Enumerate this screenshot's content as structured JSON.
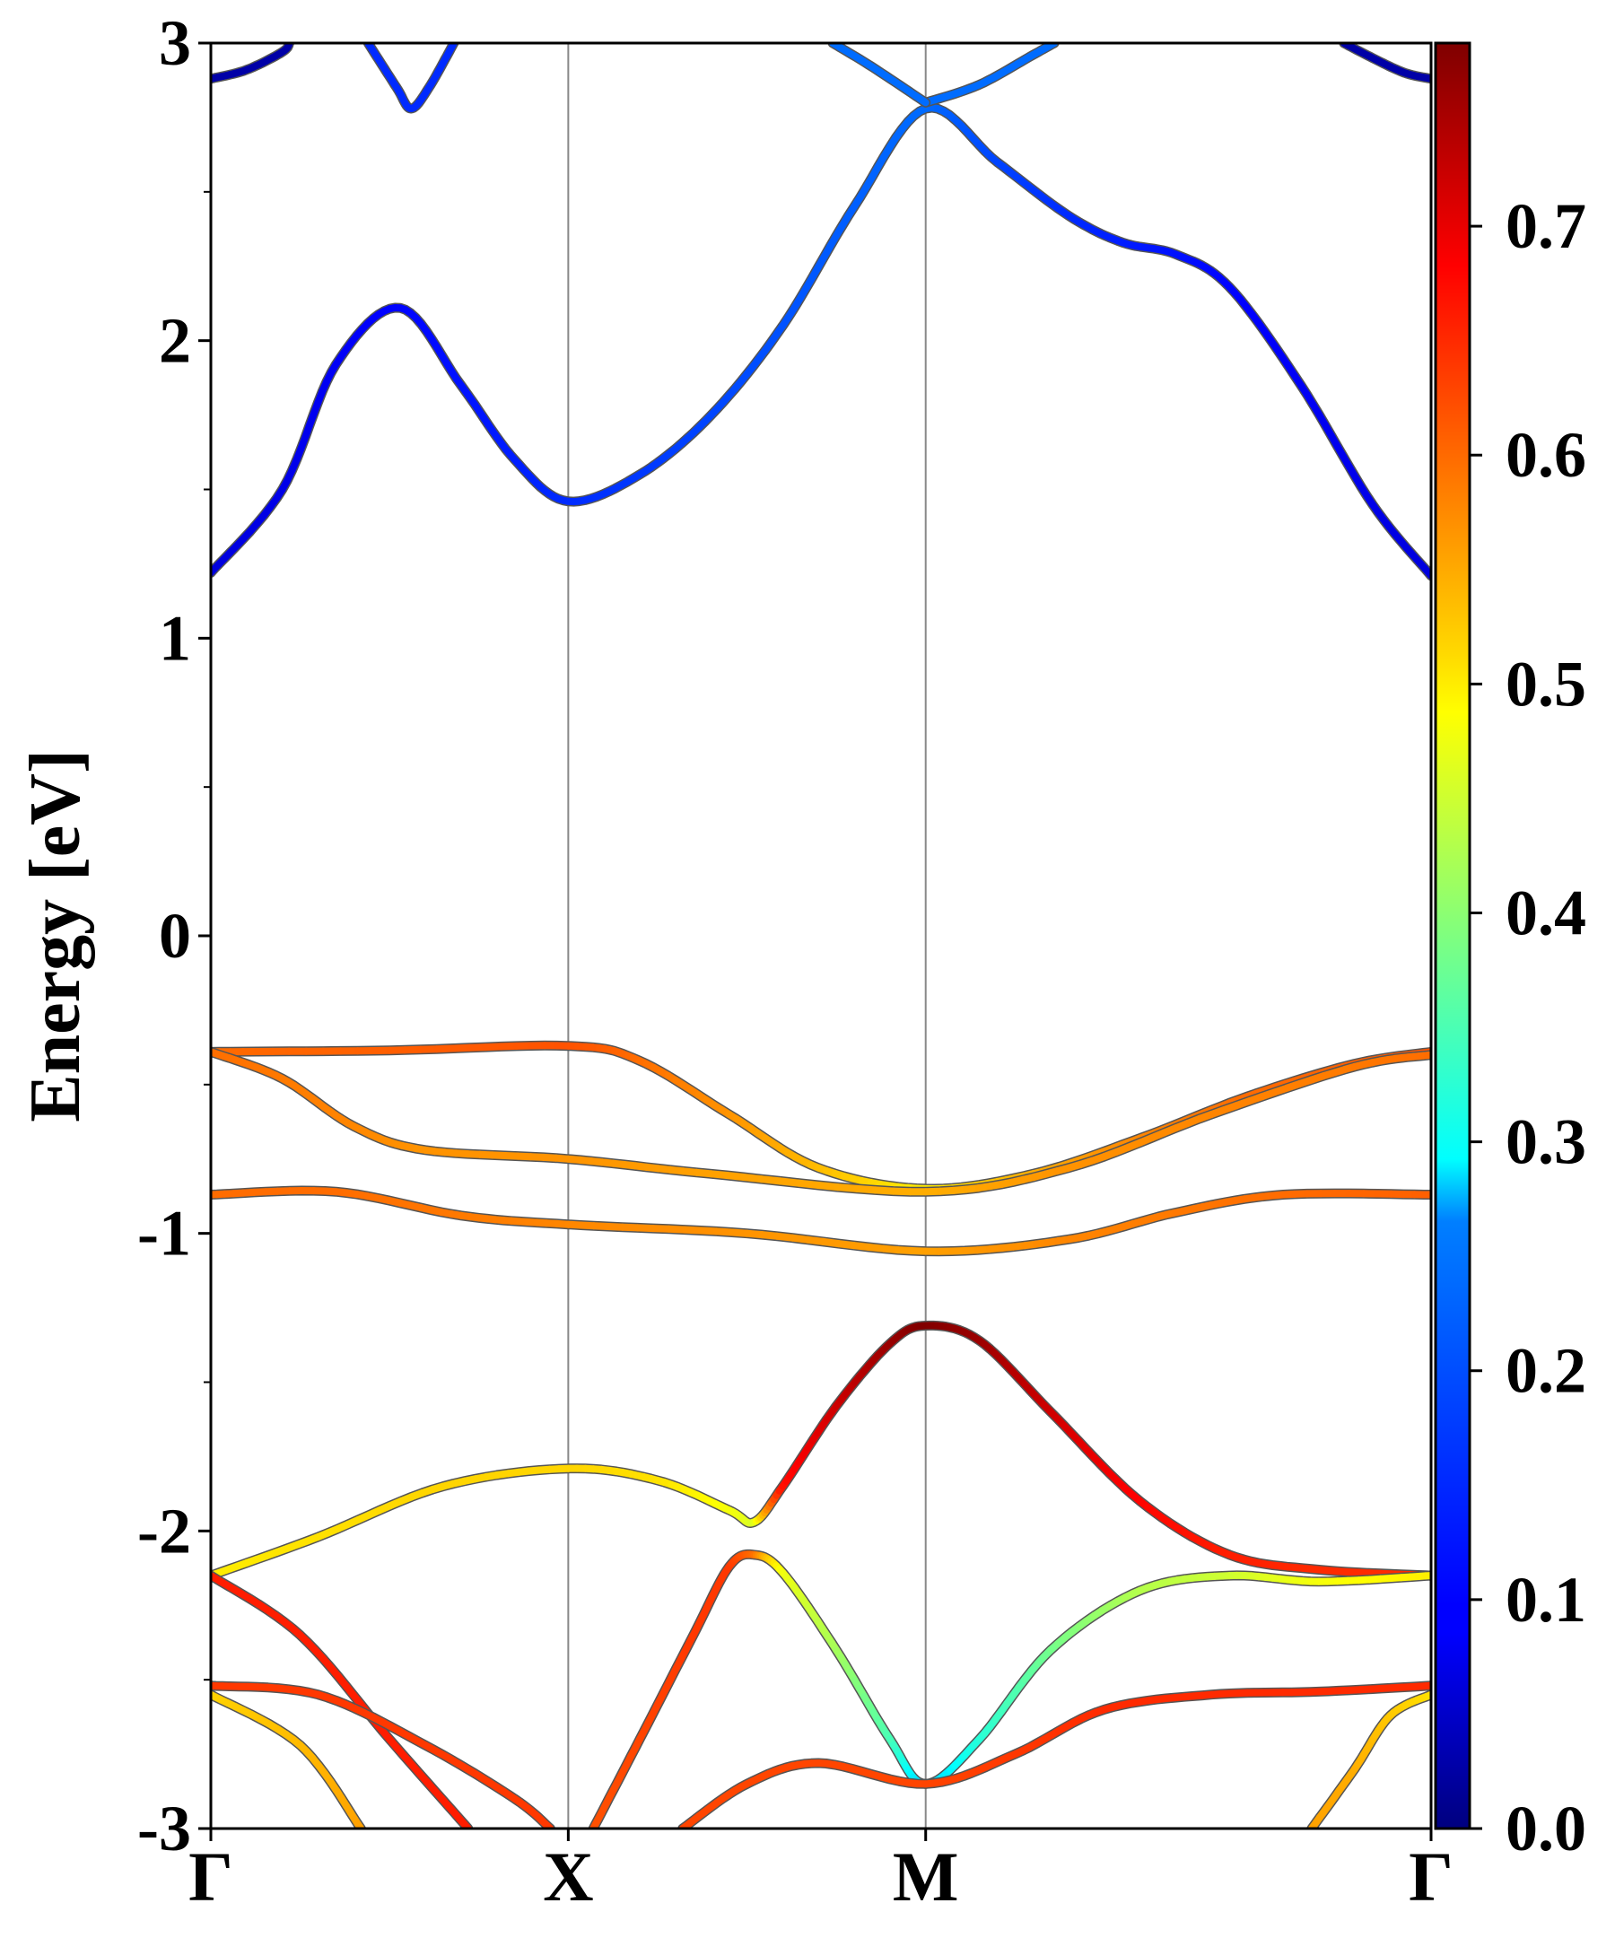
{
  "chart_data": {
    "type": "line",
    "title": "",
    "ylabel": "Energy [eV]",
    "xlabel": "",
    "ylim": [
      -3,
      3
    ],
    "yticks": [
      -3,
      -2,
      -1,
      0,
      1,
      2,
      3
    ],
    "ytick_labels": [
      "-3",
      "-2",
      "-1",
      "0",
      "1",
      "2",
      "3"
    ],
    "grid": false,
    "kpath": {
      "labels": [
        "Γ",
        "X",
        "M",
        "Γ"
      ],
      "positions": [
        0,
        1,
        2,
        3.414
      ]
    },
    "colorbar": {
      "colormap": "jet",
      "range": [
        0.0,
        0.78
      ],
      "ticks": [
        0.0,
        0.1,
        0.2,
        0.3,
        0.4,
        0.5,
        0.6,
        0.7
      ],
      "tick_labels": [
        "0.0",
        "0.1",
        "0.2",
        "0.3",
        "0.4",
        "0.5",
        "0.6",
        "0.7"
      ]
    },
    "series": [
      {
        "points": [
          [
            0,
            1.22,
            0.07
          ],
          [
            0.2,
            1.5,
            0.08
          ],
          [
            0.35,
            1.92,
            0.09
          ],
          [
            0.53,
            2.11,
            0.1
          ],
          [
            0.7,
            1.85,
            0.11
          ],
          [
            0.85,
            1.6,
            0.12
          ],
          [
            1.0,
            1.46,
            0.13
          ],
          [
            1.2,
            1.55,
            0.14
          ],
          [
            1.4,
            1.75,
            0.15
          ],
          [
            1.6,
            2.05,
            0.16
          ],
          [
            1.8,
            2.45,
            0.17
          ],
          [
            2.0,
            2.78,
            0.18
          ],
          [
            2.2,
            2.6,
            0.15
          ],
          [
            2.4,
            2.42,
            0.13
          ],
          [
            2.55,
            2.33,
            0.12
          ],
          [
            2.7,
            2.29,
            0.11
          ],
          [
            2.85,
            2.18,
            0.1
          ],
          [
            3.05,
            1.85,
            0.09
          ],
          [
            3.25,
            1.45,
            0.08
          ],
          [
            3.414,
            1.21,
            0.07
          ]
        ]
      },
      {
        "points": [
          [
            2.0,
            2.8,
            0.18
          ],
          [
            2.15,
            2.86,
            0.18
          ],
          [
            2.3,
            2.96,
            0.18
          ],
          [
            2.36,
            3.0,
            0.18
          ]
        ]
      },
      {
        "points": [
          [
            1.74,
            3.0,
            0.18
          ],
          [
            1.85,
            2.92,
            0.18
          ],
          [
            2.0,
            2.8,
            0.18
          ]
        ]
      },
      {
        "points": [
          [
            0.44,
            3.0,
            0.13
          ],
          [
            0.52,
            2.85,
            0.13
          ],
          [
            0.56,
            2.78,
            0.13
          ],
          [
            0.61,
            2.85,
            0.13
          ],
          [
            0.68,
            3.0,
            0.13
          ]
        ]
      },
      {
        "points": [
          [
            0,
            2.88,
            0.03
          ],
          [
            0.1,
            2.91,
            0.03
          ],
          [
            0.2,
            2.97,
            0.03
          ],
          [
            0.22,
            3.0,
            0.03
          ]
        ]
      },
      {
        "points": [
          [
            3.17,
            3.0,
            0.03
          ],
          [
            3.25,
            2.95,
            0.03
          ],
          [
            3.34,
            2.9,
            0.03
          ],
          [
            3.414,
            2.88,
            0.03
          ]
        ]
      },
      {
        "points": [
          [
            0,
            -0.39,
            0.6
          ],
          [
            0.5,
            -0.385,
            0.61
          ],
          [
            1.0,
            -0.37,
            0.62
          ],
          [
            1.2,
            -0.42,
            0.6
          ],
          [
            1.45,
            -0.6,
            0.57
          ],
          [
            1.7,
            -0.78,
            0.54
          ],
          [
            2.0,
            -0.85,
            0.5
          ],
          [
            2.3,
            -0.8,
            0.55
          ],
          [
            2.6,
            -0.68,
            0.58
          ],
          [
            2.9,
            -0.54,
            0.6
          ],
          [
            3.2,
            -0.43,
            0.61
          ],
          [
            3.414,
            -0.39,
            0.62
          ]
        ]
      },
      {
        "points": [
          [
            0,
            -0.39,
            0.6
          ],
          [
            0.2,
            -0.48,
            0.59
          ],
          [
            0.4,
            -0.64,
            0.58
          ],
          [
            0.6,
            -0.72,
            0.57
          ],
          [
            1.0,
            -0.75,
            0.57
          ],
          [
            1.4,
            -0.8,
            0.56
          ],
          [
            2.0,
            -0.86,
            0.55
          ],
          [
            2.4,
            -0.78,
            0.57
          ],
          [
            2.8,
            -0.6,
            0.58
          ],
          [
            3.2,
            -0.44,
            0.59
          ],
          [
            3.414,
            -0.4,
            0.6
          ]
        ]
      },
      {
        "points": [
          [
            0,
            -0.87,
            0.6
          ],
          [
            0.35,
            -0.86,
            0.6
          ],
          [
            0.7,
            -0.94,
            0.59
          ],
          [
            1.0,
            -0.97,
            0.58
          ],
          [
            1.5,
            -1.0,
            0.57
          ],
          [
            2.0,
            -1.06,
            0.56
          ],
          [
            2.4,
            -1.02,
            0.58
          ],
          [
            2.7,
            -0.93,
            0.59
          ],
          [
            3.0,
            -0.87,
            0.6
          ],
          [
            3.414,
            -0.87,
            0.61
          ]
        ]
      },
      {
        "points": [
          [
            0,
            -2.15,
            0.5
          ],
          [
            0.3,
            -2.02,
            0.51
          ],
          [
            0.65,
            -1.85,
            0.52
          ],
          [
            1.0,
            -1.79,
            0.52
          ],
          [
            1.25,
            -1.83,
            0.51
          ],
          [
            1.45,
            -1.93,
            0.48
          ],
          [
            1.52,
            -1.97,
            0.46
          ],
          [
            1.6,
            -1.85,
            0.67
          ],
          [
            1.75,
            -1.58,
            0.72
          ],
          [
            1.9,
            -1.37,
            0.76
          ],
          [
            2.0,
            -1.31,
            0.78
          ],
          [
            2.15,
            -1.36,
            0.76
          ],
          [
            2.35,
            -1.6,
            0.72
          ],
          [
            2.6,
            -1.9,
            0.68
          ],
          [
            2.85,
            -2.08,
            0.66
          ],
          [
            3.1,
            -2.13,
            0.65
          ],
          [
            3.414,
            -2.15,
            0.65
          ]
        ]
      },
      {
        "points": [
          [
            1.07,
            -3.0,
            0.62
          ],
          [
            1.2,
            -2.7,
            0.63
          ],
          [
            1.35,
            -2.35,
            0.64
          ],
          [
            1.45,
            -2.12,
            0.64
          ],
          [
            1.52,
            -2.08,
            0.6
          ],
          [
            1.6,
            -2.14,
            0.48
          ],
          [
            1.75,
            -2.4,
            0.42
          ],
          [
            1.9,
            -2.7,
            0.35
          ],
          [
            2.0,
            -2.85,
            0.25
          ],
          [
            2.15,
            -2.7,
            0.32
          ],
          [
            2.35,
            -2.4,
            0.38
          ],
          [
            2.6,
            -2.2,
            0.43
          ],
          [
            2.85,
            -2.15,
            0.45
          ],
          [
            3.1,
            -2.17,
            0.48
          ],
          [
            3.414,
            -2.15,
            0.5
          ]
        ]
      },
      {
        "points": [
          [
            0,
            -2.15,
            0.66
          ],
          [
            0.25,
            -2.35,
            0.66
          ],
          [
            0.5,
            -2.7,
            0.66
          ],
          [
            0.72,
            -3.0,
            0.66
          ]
        ]
      },
      {
        "points": [
          [
            0,
            -2.52,
            0.64
          ],
          [
            0.3,
            -2.55,
            0.64
          ],
          [
            0.6,
            -2.72,
            0.64
          ],
          [
            0.85,
            -2.9,
            0.64
          ],
          [
            0.95,
            -3.0,
            0.64
          ]
        ]
      },
      {
        "points": [
          [
            0,
            -2.55,
            0.52
          ],
          [
            0.25,
            -2.72,
            0.54
          ],
          [
            0.42,
            -3.0,
            0.56
          ]
        ]
      },
      {
        "points": [
          [
            1.32,
            -3.0,
            0.63
          ],
          [
            1.5,
            -2.85,
            0.63
          ],
          [
            1.7,
            -2.78,
            0.63
          ],
          [
            2.0,
            -2.85,
            0.63
          ],
          [
            2.25,
            -2.75,
            0.64
          ],
          [
            2.5,
            -2.6,
            0.65
          ],
          [
            2.8,
            -2.55,
            0.65
          ],
          [
            3.1,
            -2.54,
            0.65
          ],
          [
            3.414,
            -2.52,
            0.65
          ]
        ]
      },
      {
        "points": [
          [
            3.08,
            -3.0,
            0.56
          ],
          [
            3.2,
            -2.8,
            0.55
          ],
          [
            3.3,
            -2.62,
            0.53
          ],
          [
            3.414,
            -2.55,
            0.51
          ]
        ]
      }
    ]
  }
}
